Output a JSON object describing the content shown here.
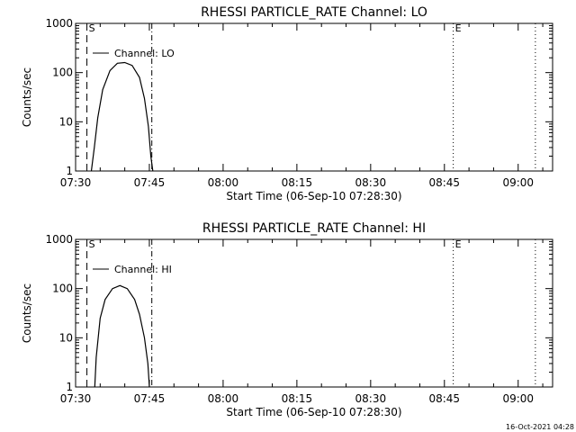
{
  "chart_data": [
    {
      "type": "line",
      "title": "RHESSI PARTICLE_RATE Channel: LO",
      "xlabel": "Start Time (06-Sep-10 07:28:30)",
      "ylabel": "Counts/sec",
      "yscale": "log",
      "ylim": [
        1,
        1000
      ],
      "xlim_minutes_from_0730": [
        0,
        97
      ],
      "x_ticks": [
        {
          "label": "07:30",
          "min": 0
        },
        {
          "label": "07:45",
          "min": 15
        },
        {
          "label": "08:00",
          "min": 30
        },
        {
          "label": "08:15",
          "min": 45
        },
        {
          "label": "08:30",
          "min": 60
        },
        {
          "label": "08:45",
          "min": 75
        },
        {
          "label": "09:00",
          "min": 90
        }
      ],
      "y_ticks": [
        {
          "label": "1",
          "value": 1
        },
        {
          "label": "10",
          "value": 10
        },
        {
          "label": "100",
          "value": 100
        },
        {
          "label": "1000",
          "value": 1000
        }
      ],
      "legend": {
        "label": "Channel: LO",
        "position": "top-left"
      },
      "markers": [
        {
          "label": "S",
          "min": 2.3,
          "style": "dashed"
        },
        {
          "label": "",
          "min": 15.5,
          "style": "dashdot"
        },
        {
          "label": "E",
          "min": 76.8,
          "style": "dotted"
        },
        {
          "label": "",
          "min": 93.5,
          "style": "dotted"
        }
      ],
      "series": [
        {
          "name": "Channel: LO",
          "x": [
            3.2,
            3.8,
            4.5,
            5.5,
            7.0,
            8.5,
            10.0,
            11.5,
            13.0,
            14.0,
            14.8,
            15.3,
            15.7
          ],
          "y": [
            1,
            3,
            12,
            45,
            110,
            155,
            160,
            140,
            80,
            30,
            8,
            2,
            1
          ]
        }
      ]
    },
    {
      "type": "line",
      "title": "RHESSI PARTICLE_RATE Channel: HI",
      "xlabel": "Start Time (06-Sep-10 07:28:30)",
      "ylabel": "Counts/sec",
      "yscale": "log",
      "ylim": [
        1,
        1000
      ],
      "xlim_minutes_from_0730": [
        0,
        97
      ],
      "x_ticks": [
        {
          "label": "07:30",
          "min": 0
        },
        {
          "label": "07:45",
          "min": 15
        },
        {
          "label": "08:00",
          "min": 30
        },
        {
          "label": "08:15",
          "min": 45
        },
        {
          "label": "08:30",
          "min": 60
        },
        {
          "label": "08:45",
          "min": 75
        },
        {
          "label": "09:00",
          "min": 90
        }
      ],
      "y_ticks": [
        {
          "label": "1",
          "value": 1
        },
        {
          "label": "10",
          "value": 10
        },
        {
          "label": "100",
          "value": 100
        },
        {
          "label": "1000",
          "value": 1000
        }
      ],
      "legend": {
        "label": "Channel: HI",
        "position": "top-left"
      },
      "markers": [
        {
          "label": "S",
          "min": 2.3,
          "style": "dashed"
        },
        {
          "label": "",
          "min": 15.5,
          "style": "dashdot"
        },
        {
          "label": "E",
          "min": 76.8,
          "style": "dotted"
        },
        {
          "label": "",
          "min": 93.5,
          "style": "dotted"
        }
      ],
      "series": [
        {
          "name": "Channel: HI",
          "x": [
            3.9,
            4.2,
            5.0,
            6.0,
            7.5,
            9.0,
            10.5,
            12.0,
            13.0,
            14.0,
            14.7,
            15.0
          ],
          "y": [
            1,
            4,
            25,
            60,
            100,
            115,
            100,
            60,
            30,
            10,
            3,
            1
          ]
        }
      ]
    }
  ],
  "footer_timestamp": "16-Oct-2021 04:28"
}
